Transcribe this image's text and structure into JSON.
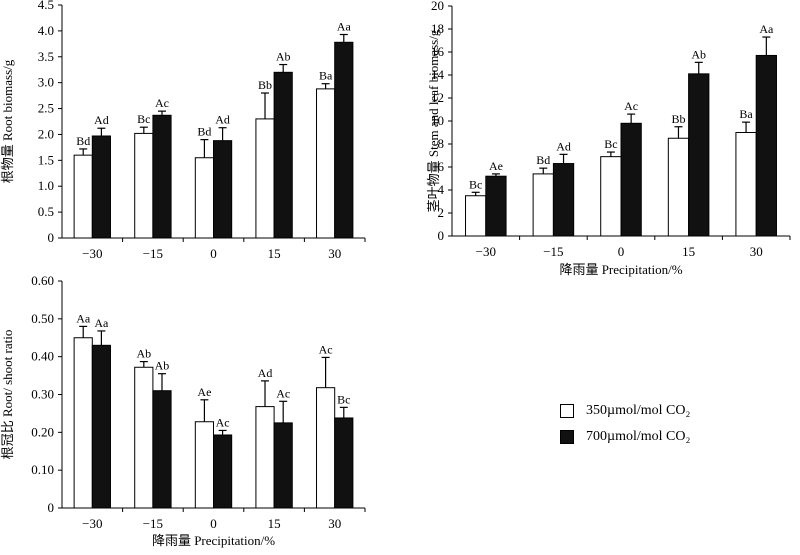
{
  "chart_data": [
    {
      "type": "bar",
      "id": "root-biomass",
      "categories": [
        "−30",
        "−15",
        "0",
        "15",
        "30"
      ],
      "series": [
        {
          "name": "350µmol/mol CO₂",
          "values": [
            1.6,
            2.02,
            1.55,
            2.3,
            2.88
          ],
          "errors": [
            0.12,
            0.12,
            0.35,
            0.5,
            0.1
          ],
          "labels": [
            "Bd",
            "Bc",
            "Bd",
            "Bb",
            "Ba"
          ]
        },
        {
          "name": "700µmol/mol CO₂",
          "values": [
            1.97,
            2.37,
            1.88,
            3.2,
            3.78
          ],
          "errors": [
            0.15,
            0.08,
            0.25,
            0.15,
            0.15
          ],
          "labels": [
            "Ad",
            "Ac",
            "Ad",
            "Ab",
            "Aa"
          ]
        }
      ],
      "ylabel": "根物量 Root biomass/g",
      "xlabel": "",
      "ylim": [
        0,
        4.5
      ],
      "yticks": [
        "0",
        "0.5",
        "1.0",
        "1.5",
        "2.0",
        "2.5",
        "3.0",
        "3.5",
        "4.0",
        "4.5"
      ]
    },
    {
      "type": "bar",
      "id": "stem-leaf-biomass",
      "categories": [
        "−30",
        "−15",
        "0",
        "15",
        "30"
      ],
      "series": [
        {
          "name": "350µmol/mol CO₂",
          "values": [
            3.5,
            5.4,
            6.9,
            8.5,
            9.0
          ],
          "errors": [
            0.3,
            0.5,
            0.4,
            1.0,
            0.9
          ],
          "labels": [
            "Bc",
            "Bd",
            "Bc",
            "Bb",
            "Ba"
          ]
        },
        {
          "name": "700µmol/mol CO₂",
          "values": [
            5.2,
            6.3,
            9.8,
            14.1,
            15.7
          ],
          "errors": [
            0.2,
            0.8,
            0.8,
            1.0,
            1.6
          ],
          "labels": [
            "Ae",
            "Ad",
            "Ac",
            "Ab",
            "Aa"
          ]
        }
      ],
      "ylabel": "茎叶物量 Stem and leaf biomass/g",
      "xlabel": "降雨量 Precipitation/%",
      "ylim": [
        0,
        20
      ],
      "yticks": [
        "0",
        "2",
        "4",
        "6",
        "8",
        "10",
        "12",
        "14",
        "16",
        "18",
        "20"
      ]
    },
    {
      "type": "bar",
      "id": "root-shoot-ratio",
      "categories": [
        "−30",
        "−15",
        "0",
        "15",
        "30"
      ],
      "series": [
        {
          "name": "350µmol/mol CO₂",
          "values": [
            0.45,
            0.372,
            0.228,
            0.268,
            0.318
          ],
          "errors": [
            0.03,
            0.015,
            0.058,
            0.068,
            0.08
          ],
          "labels": [
            "Aa",
            "Ab",
            "Ae",
            "Ad",
            "Ac"
          ]
        },
        {
          "name": "700µmol/mol CO₂",
          "values": [
            0.43,
            0.31,
            0.193,
            0.225,
            0.238
          ],
          "errors": [
            0.038,
            0.045,
            0.012,
            0.057,
            0.028
          ],
          "labels": [
            "Aa",
            "Ab",
            "Ac",
            "Ac",
            "Bc"
          ]
        }
      ],
      "ylabel": "根冠比 Root/ shoot ratio",
      "xlabel": "降雨量 Precipitation/%",
      "ylim": [
        0,
        0.6
      ],
      "yticks": [
        "0",
        "0.10",
        "0.20",
        "0.30",
        "0.40",
        "0.50",
        "0.60"
      ]
    }
  ],
  "legend": {
    "items": [
      {
        "label": "350µmol/mol CO₂",
        "color": "#ffffff"
      },
      {
        "label": "700µmol/mol CO₂",
        "color": "#111111"
      }
    ]
  }
}
